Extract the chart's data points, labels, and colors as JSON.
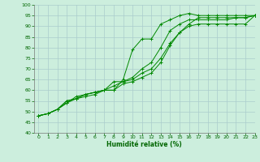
{
  "xlabel": "Humidité relative (%)",
  "bg_color": "#cceedd",
  "grid_color": "#aacccc",
  "line_color": "#008800",
  "xlim": [
    -0.5,
    23
  ],
  "ylim": [
    40,
    100
  ],
  "xticks": [
    0,
    1,
    2,
    3,
    4,
    5,
    6,
    7,
    8,
    9,
    10,
    11,
    12,
    13,
    14,
    15,
    16,
    17,
    18,
    19,
    20,
    21,
    22,
    23
  ],
  "yticks": [
    40,
    45,
    50,
    55,
    60,
    65,
    70,
    75,
    80,
    85,
    90,
    95,
    100
  ],
  "series": [
    [
      48,
      49,
      51,
      54,
      57,
      58,
      59,
      60,
      60,
      65,
      79,
      84,
      84,
      91,
      93,
      95,
      96,
      95,
      95,
      95,
      95,
      95,
      95,
      95
    ],
    [
      48,
      49,
      51,
      55,
      56,
      58,
      59,
      60,
      64,
      64,
      66,
      70,
      73,
      80,
      88,
      91,
      93,
      93,
      93,
      93,
      93,
      94,
      94,
      95
    ],
    [
      48,
      49,
      51,
      54,
      56,
      57,
      58,
      60,
      60,
      63,
      64,
      66,
      68,
      73,
      81,
      87,
      90,
      91,
      91,
      91,
      91,
      91,
      91,
      95
    ],
    [
      48,
      49,
      51,
      55,
      56,
      58,
      59,
      60,
      62,
      64,
      65,
      68,
      70,
      75,
      82,
      87,
      91,
      94,
      94,
      94,
      94,
      94,
      94,
      95
    ]
  ]
}
